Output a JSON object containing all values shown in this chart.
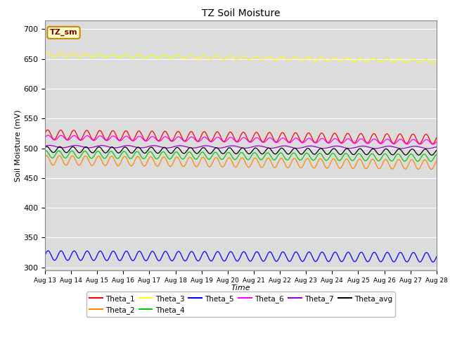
{
  "title": "TZ Soil Moisture",
  "xlabel": "Time",
  "ylabel": "Soil Moisture (mV)",
  "ylim": [
    295,
    715
  ],
  "xlim_days": [
    0,
    15
  ],
  "bg_color": "#dcdcdc",
  "fig_bg_color": "#ffffff",
  "series": {
    "Theta_1": {
      "color": "#ff0000",
      "base": 523,
      "amplitude": 8,
      "trend": -0.5,
      "freq": 2.0,
      "phase": 0.3
    },
    "Theta_2": {
      "color": "#ff8800",
      "base": 480,
      "amplitude": 8,
      "trend": -0.5,
      "freq": 2.0,
      "phase": 0.9
    },
    "Theta_3": {
      "color": "#ffff00",
      "base": 657,
      "amplitude": 3,
      "trend": -0.7,
      "freq": 2.0,
      "phase": 0.5
    },
    "Theta_4": {
      "color": "#00cc00",
      "base": 490,
      "amplitude": 6,
      "trend": -0.4,
      "freq": 2.0,
      "phase": 1.2
    },
    "Theta_5": {
      "color": "#0000ff",
      "base": 320,
      "amplitude": 8,
      "trend": -0.2,
      "freq": 2.0,
      "phase": 0.1
    },
    "Theta_6": {
      "color": "#ff00ff",
      "base": 518,
      "amplitude": 4,
      "trend": -0.5,
      "freq": 2.0,
      "phase": 0.1
    },
    "Theta_7": {
      "color": "#9900cc",
      "base": 503,
      "amplitude": 2,
      "trend": -0.1,
      "freq": 1.0,
      "phase": 0.5
    },
    "Theta_avg": {
      "color": "#000000",
      "base": 498,
      "amplitude": 5,
      "trend": -0.3,
      "freq": 2.0,
      "phase": 0.7
    }
  },
  "legend_box_label": "TZ_sm",
  "legend_box_facecolor": "#ffffcc",
  "legend_box_edgecolor": "#cc8800",
  "legend_box_textcolor": "#880000",
  "tick_labels": [
    "Aug 13",
    "Aug 14",
    "Aug 15",
    "Aug 16",
    "Aug 17",
    "Aug 18",
    "Aug 19",
    "Aug 20",
    "Aug 21",
    "Aug 22",
    "Aug 23",
    "Aug 24",
    "Aug 25",
    "Aug 26",
    "Aug 27",
    "Aug 28"
  ],
  "yticks": [
    300,
    350,
    400,
    450,
    500,
    550,
    600,
    650,
    700
  ]
}
